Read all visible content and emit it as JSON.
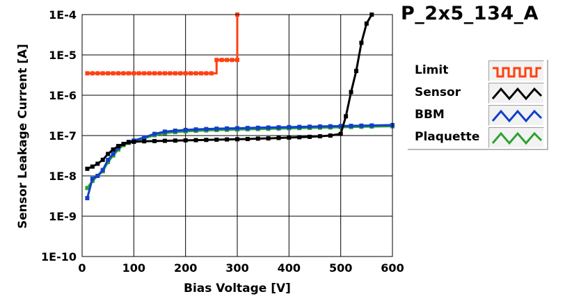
{
  "chart_data": {
    "type": "line",
    "title": "P_2x5_134_A",
    "xlabel": "Bias Voltage [V]",
    "ylabel": "Sensor Leakage Current [A]",
    "xlim": [
      0,
      600
    ],
    "ylim": [
      1e-10,
      0.0001
    ],
    "yscale": "log",
    "grid": true,
    "legend_position": "right",
    "x_ticks": [
      "0",
      "100",
      "200",
      "300",
      "400",
      "500",
      "600"
    ],
    "y_ticks": [
      "1E-10",
      "1E-9",
      "1E-8",
      "1E-7",
      "1E-6",
      "1E-5",
      "1E-4"
    ],
    "series": [
      {
        "name": "Limit",
        "color": "#ff4010",
        "step": true,
        "x": [
          10,
          20,
          30,
          40,
          50,
          60,
          70,
          80,
          90,
          100,
          110,
          120,
          130,
          140,
          150,
          160,
          170,
          180,
          190,
          200,
          210,
          220,
          230,
          240,
          250,
          260,
          270,
          280,
          290,
          300,
          300
        ],
        "y": [
          3.5e-06,
          3.5e-06,
          3.5e-06,
          3.5e-06,
          3.5e-06,
          3.5e-06,
          3.5e-06,
          3.5e-06,
          3.5e-06,
          3.5e-06,
          3.5e-06,
          3.5e-06,
          3.5e-06,
          3.5e-06,
          3.5e-06,
          3.5e-06,
          3.5e-06,
          3.5e-06,
          3.5e-06,
          3.5e-06,
          3.5e-06,
          3.5e-06,
          3.5e-06,
          3.5e-06,
          3.5e-06,
          7.5e-06,
          7.5e-06,
          7.5e-06,
          7.5e-06,
          7.5e-06,
          0.0001
        ]
      },
      {
        "name": "Sensor",
        "color": "#000000",
        "x": [
          10,
          20,
          30,
          40,
          50,
          60,
          70,
          80,
          90,
          100,
          120,
          140,
          160,
          180,
          200,
          220,
          240,
          260,
          280,
          300,
          320,
          340,
          360,
          380,
          400,
          420,
          440,
          460,
          480,
          500,
          510,
          520,
          530,
          540,
          550,
          560
        ],
        "y": [
          1.5e-08,
          1.7e-08,
          2e-08,
          2.5e-08,
          3.5e-08,
          4.5e-08,
          5.5e-08,
          6.2e-08,
          6.8e-08,
          7e-08,
          7.2e-08,
          7.3e-08,
          7.4e-08,
          7.5e-08,
          7.6e-08,
          7.7e-08,
          7.8e-08,
          7.9e-08,
          8e-08,
          8.1e-08,
          8.2e-08,
          8.4e-08,
          8.5e-08,
          8.7e-08,
          8.9e-08,
          9.1e-08,
          9.3e-08,
          9.6e-08,
          1e-07,
          1.1e-07,
          3e-07,
          1.2e-06,
          4e-06,
          2e-05,
          6e-05,
          0.0001
        ]
      },
      {
        "name": "BBM",
        "color": "#1040c8",
        "x": [
          10,
          20,
          30,
          40,
          50,
          60,
          70,
          80,
          90,
          100,
          120,
          140,
          160,
          180,
          200,
          220,
          240,
          260,
          280,
          300,
          320,
          340,
          360,
          380,
          400,
          420,
          440,
          460,
          480,
          500,
          520,
          540,
          560,
          600
        ],
        "y": [
          2.8e-09,
          8.5e-09,
          1e-08,
          1.4e-08,
          2.5e-08,
          3.5e-08,
          5e-08,
          6.2e-08,
          7e-08,
          7.5e-08,
          9e-08,
          1.1e-07,
          1.25e-07,
          1.32e-07,
          1.38e-07,
          1.42e-07,
          1.45e-07,
          1.48e-07,
          1.5e-07,
          1.52e-07,
          1.54e-07,
          1.56e-07,
          1.58e-07,
          1.6e-07,
          1.62e-07,
          1.64e-07,
          1.66e-07,
          1.68e-07,
          1.7e-07,
          1.72e-07,
          1.74e-07,
          1.76e-07,
          1.78e-07,
          1.82e-07
        ]
      },
      {
        "name": "Plaquette",
        "color": "#30a030",
        "x": [
          10,
          20,
          30,
          40,
          50,
          60,
          70,
          80,
          90,
          100,
          120,
          140,
          160,
          180,
          200,
          220,
          240,
          260,
          280,
          300,
          320,
          340,
          360,
          380,
          400,
          420,
          440,
          460,
          480,
          500,
          520,
          540,
          560,
          600
        ],
        "y": [
          5e-09,
          7.5e-09,
          1e-08,
          1.3e-08,
          2.2e-08,
          3.2e-08,
          4.5e-08,
          5.8e-08,
          6.6e-08,
          7.2e-08,
          8.5e-08,
          1.02e-07,
          1.15e-07,
          1.22e-07,
          1.27e-07,
          1.31e-07,
          1.34e-07,
          1.37e-07,
          1.39e-07,
          1.41e-07,
          1.43e-07,
          1.45e-07,
          1.47e-07,
          1.49e-07,
          1.51e-07,
          1.53e-07,
          1.55e-07,
          1.57e-07,
          1.59e-07,
          1.61e-07,
          1.63e-07,
          1.65e-07,
          1.67e-07,
          1.7e-07
        ]
      }
    ]
  }
}
